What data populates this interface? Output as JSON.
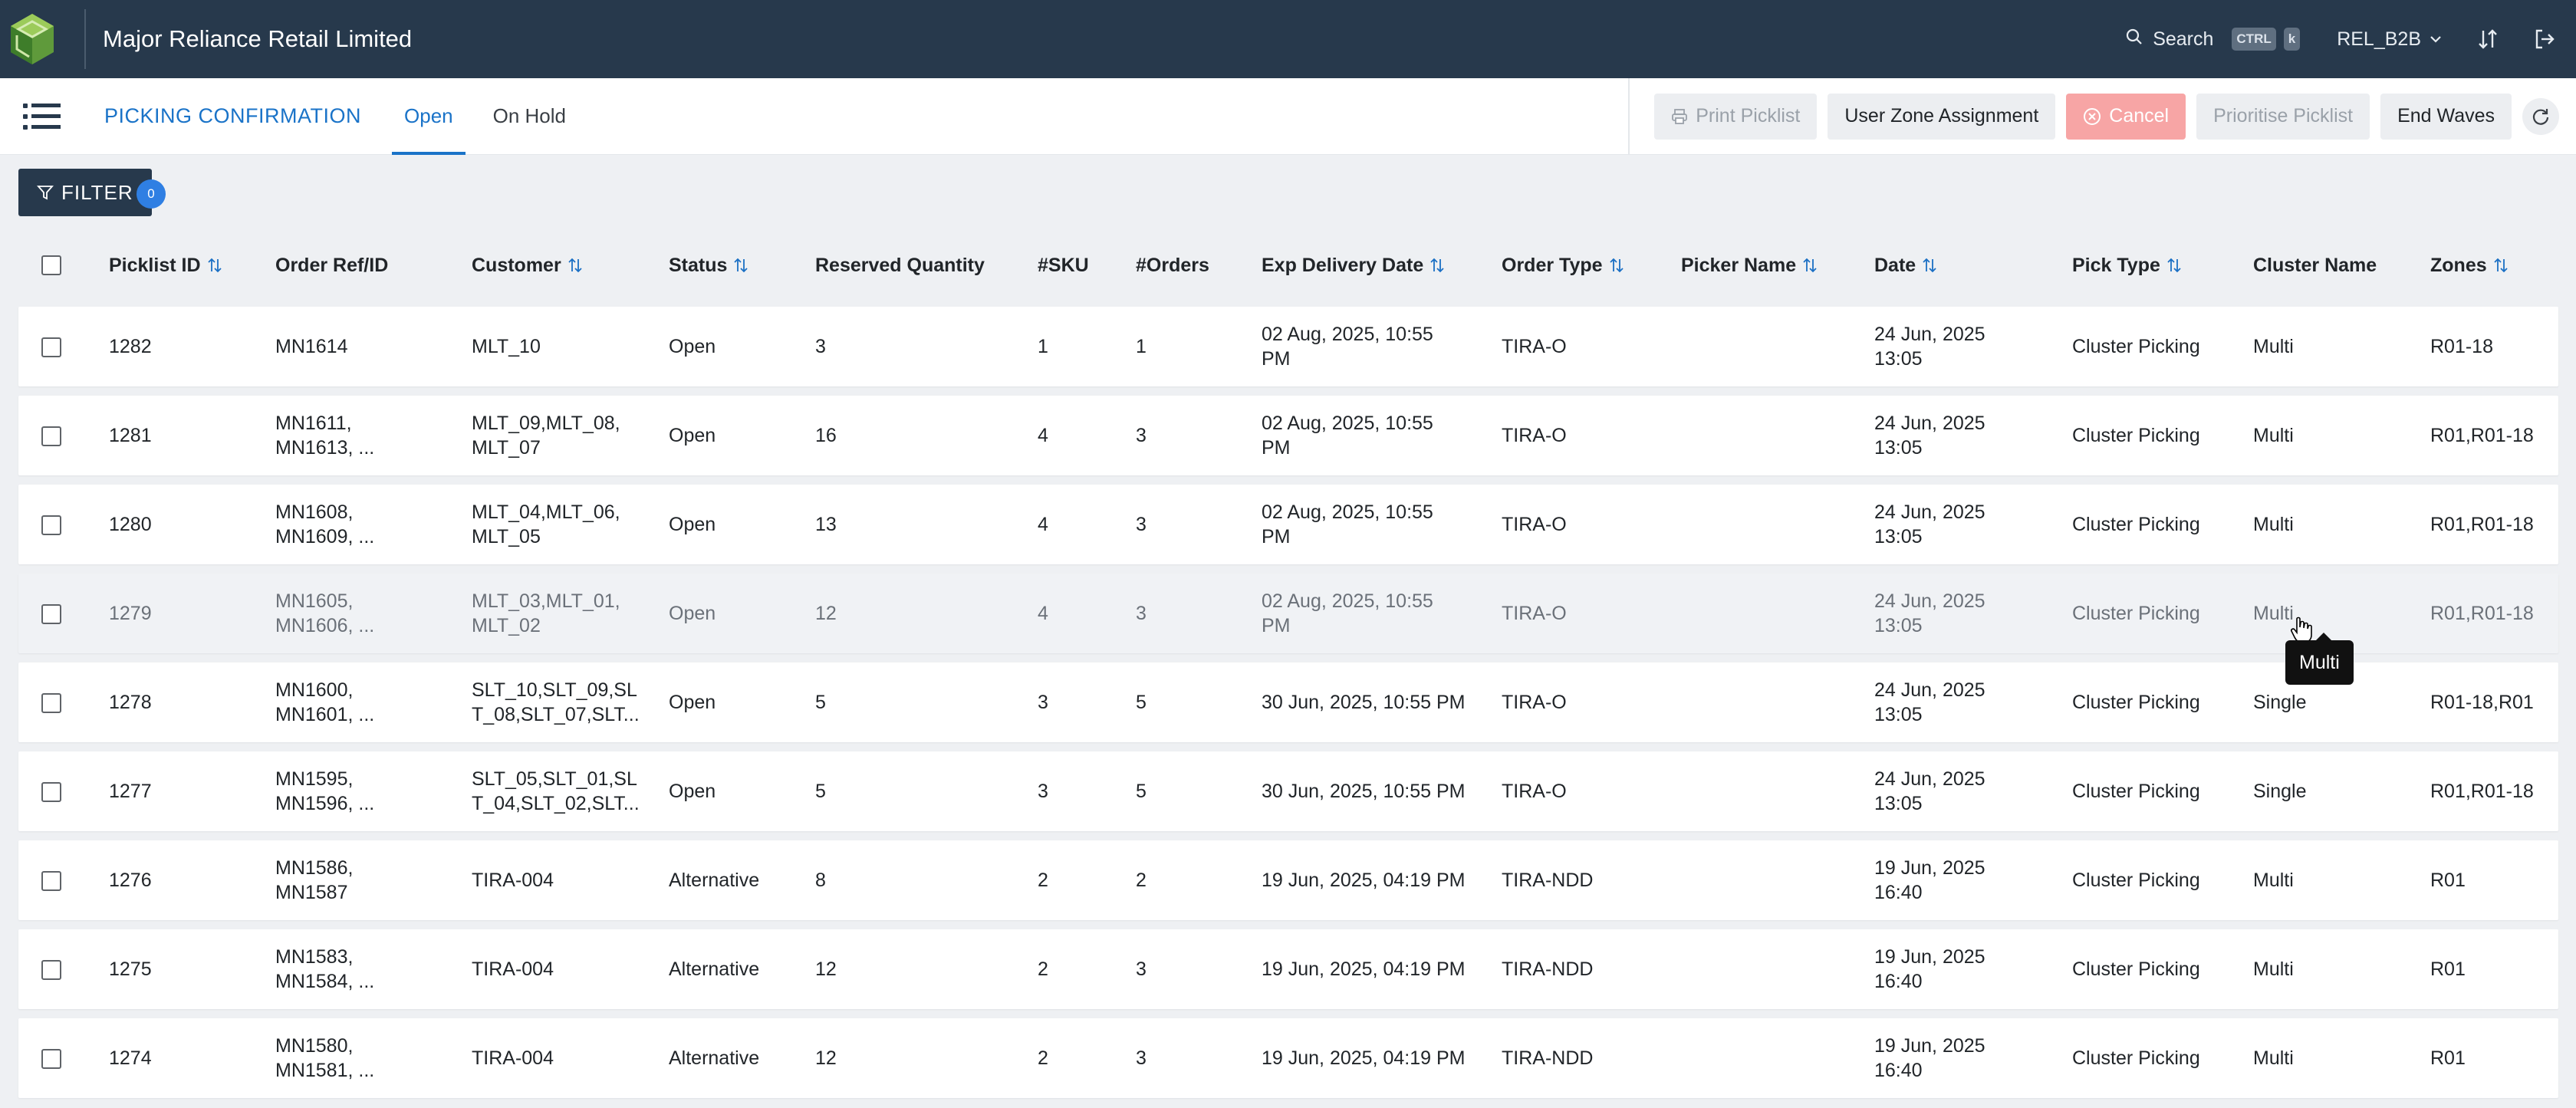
{
  "header": {
    "app_title": "Major Reliance Retail Limited",
    "search_label": "Search",
    "shortcut_ctrl": "CTRL",
    "shortcut_key": "k",
    "user_code": "REL_B2B"
  },
  "subheader": {
    "page_title": "PICKING CONFIRMATION",
    "tabs": [
      {
        "label": "Open",
        "active": true
      },
      {
        "label": "On Hold",
        "active": false
      }
    ],
    "actions": {
      "print_picklist": "Print Picklist",
      "user_zone_assignment": "User Zone Assignment",
      "cancel": "Cancel",
      "prioritise_picklist": "Prioritise Picklist",
      "end_waves": "End Waves"
    }
  },
  "filter": {
    "label": "FILTER",
    "count": "0"
  },
  "table": {
    "columns": {
      "picklist_id": "Picklist ID",
      "order_ref": "Order Ref/ID",
      "customer": "Customer",
      "status": "Status",
      "reserved_qty": "Reserved Quantity",
      "sku": "#SKU",
      "orders": "#Orders",
      "exp_delivery": "Exp Delivery Date",
      "order_type": "Order Type",
      "picker_name": "Picker Name",
      "date": "Date",
      "pick_type": "Pick Type",
      "cluster_name": "Cluster Name",
      "zones": "Zones"
    },
    "rows": [
      {
        "id": "1282",
        "ref": "MN1614",
        "customer": "MLT_10",
        "status": "Open",
        "reserved": "3",
        "sku": "1",
        "orders": "1",
        "exp": "02 Aug, 2025, 10:55\nPM",
        "type": "TIRA-O",
        "picker": "",
        "date": "24 Jun, 2025\n13:05",
        "pick": "Cluster Picking",
        "cluster": "Multi",
        "zones": "R01-18"
      },
      {
        "id": "1281",
        "ref": "MN1611,\nMN1613, ...",
        "customer": "MLT_09,MLT_08,\nMLT_07",
        "status": "Open",
        "reserved": "16",
        "sku": "4",
        "orders": "3",
        "exp": "02 Aug, 2025, 10:55\nPM",
        "type": "TIRA-O",
        "picker": "",
        "date": "24 Jun, 2025\n13:05",
        "pick": "Cluster Picking",
        "cluster": "Multi",
        "zones": "R01,R01-18"
      },
      {
        "id": "1280",
        "ref": "MN1608,\nMN1609, ...",
        "customer": "MLT_04,MLT_06,\nMLT_05",
        "status": "Open",
        "reserved": "13",
        "sku": "4",
        "orders": "3",
        "exp": "02 Aug, 2025, 10:55\nPM",
        "type": "TIRA-O",
        "picker": "",
        "date": "24 Jun, 2025\n13:05",
        "pick": "Cluster Picking",
        "cluster": "Multi",
        "zones": "R01,R01-18"
      },
      {
        "id": "1279",
        "ref": "MN1605,\nMN1606, ...",
        "customer": "MLT_03,MLT_01,\nMLT_02",
        "status": "Open",
        "reserved": "12",
        "sku": "4",
        "orders": "3",
        "exp": "02 Aug, 2025, 10:55\nPM",
        "type": "TIRA-O",
        "picker": "",
        "date": "24 Jun, 2025\n13:05",
        "pick": "Cluster Picking",
        "cluster": "Multi",
        "zones": "R01,R01-18"
      },
      {
        "id": "1278",
        "ref": "MN1600,\nMN1601, ...",
        "customer": "SLT_10,SLT_09,SL\nT_08,SLT_07,SLT...",
        "status": "Open",
        "reserved": "5",
        "sku": "3",
        "orders": "5",
        "exp": "30 Jun, 2025, 10:55 PM",
        "type": "TIRA-O",
        "picker": "",
        "date": "24 Jun, 2025\n13:05",
        "pick": "Cluster Picking",
        "cluster": "Single",
        "zones": "R01-18,R01"
      },
      {
        "id": "1277",
        "ref": "MN1595,\nMN1596, ...",
        "customer": "SLT_05,SLT_01,SL\nT_04,SLT_02,SLT...",
        "status": "Open",
        "reserved": "5",
        "sku": "3",
        "orders": "5",
        "exp": "30 Jun, 2025, 10:55 PM",
        "type": "TIRA-O",
        "picker": "",
        "date": "24 Jun, 2025\n13:05",
        "pick": "Cluster Picking",
        "cluster": "Single",
        "zones": "R01,R01-18"
      },
      {
        "id": "1276",
        "ref": "MN1586,\nMN1587",
        "customer": "TIRA-004",
        "status": "Alternative",
        "reserved": "8",
        "sku": "2",
        "orders": "2",
        "exp": "19 Jun, 2025, 04:19 PM",
        "type": "TIRA-NDD",
        "picker": "",
        "date": "19 Jun, 2025\n16:40",
        "pick": "Cluster Picking",
        "cluster": "Multi",
        "zones": "R01"
      },
      {
        "id": "1275",
        "ref": "MN1583,\nMN1584, ...",
        "customer": "TIRA-004",
        "status": "Alternative",
        "reserved": "12",
        "sku": "2",
        "orders": "3",
        "exp": "19 Jun, 2025, 04:19 PM",
        "type": "TIRA-NDD",
        "picker": "",
        "date": "19 Jun, 2025\n16:40",
        "pick": "Cluster Picking",
        "cluster": "Multi",
        "zones": "R01"
      },
      {
        "id": "1274",
        "ref": "MN1580,\nMN1581, ...",
        "customer": "TIRA-004",
        "status": "Alternative",
        "reserved": "12",
        "sku": "2",
        "orders": "3",
        "exp": "19 Jun, 2025, 04:19 PM",
        "type": "TIRA-NDD",
        "picker": "",
        "date": "19 Jun, 2025\n16:40",
        "pick": "Cluster Picking",
        "cluster": "Multi",
        "zones": "R01"
      }
    ]
  },
  "tooltip": {
    "text": "Multi"
  },
  "icons": [
    "app-logo-icon",
    "search-icon",
    "chevron-down-icon",
    "sort-icon",
    "logout-icon",
    "menu-icon",
    "print-icon",
    "cancel-circle-icon",
    "refresh-icon",
    "filter-icon",
    "sort-arrows-icon",
    "pointer-cursor-icon"
  ],
  "colors": {
    "topbar": "#27394c",
    "accent": "#1a73c8",
    "cancel": "#f7a5a5",
    "badge": "#2f7fe3"
  }
}
